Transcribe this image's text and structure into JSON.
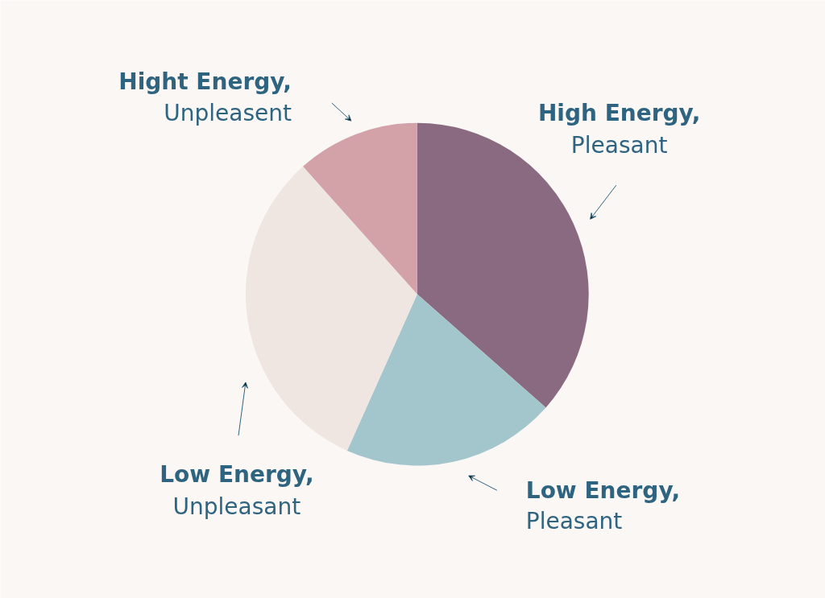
{
  "chart_data": {
    "type": "pie",
    "categories": [
      "High Energy,\nPleasant",
      "Low Energy,\nPleasant",
      "Low Energy,\nUnpleasant",
      "Hight Energy,\nUnpleasent"
    ],
    "values": [
      36.5,
      20.2,
      31.7,
      11.6
    ],
    "colors": [
      "#8a6a80",
      "#a3c6cd",
      "#efe6e2",
      "#d3a2a8"
    ]
  }
}
